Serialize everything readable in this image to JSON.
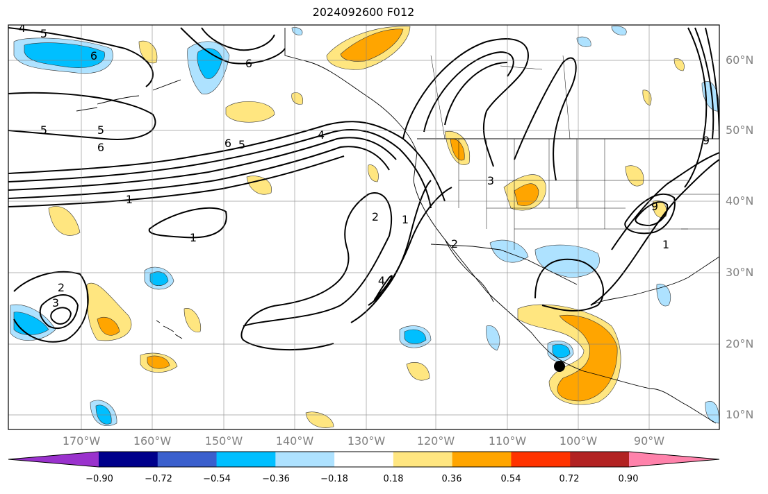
{
  "title": "2024092600 F012",
  "latitudes": [
    "60°N",
    "50°N",
    "40°N",
    "30°N",
    "20°N",
    "10°N"
  ],
  "longitudes": [
    "170°W",
    "160°W",
    "150°W",
    "140°W",
    "130°W",
    "120°W",
    "110°W",
    "100°W",
    "90°W"
  ],
  "colorbar": {
    "ticks": [
      "−0.90",
      "−0.72",
      "−0.54",
      "−0.36",
      "−0.18",
      "0.18",
      "0.36",
      "0.54",
      "0.72",
      "0.90"
    ],
    "colors": [
      "#9a32cd",
      "#00008b",
      "#3a5fcd",
      "#00bfff",
      "#aee2ff",
      "#ffffff",
      "#ffe680",
      "#ffa500",
      "#ff3300",
      "#b22222",
      "#ff82ab"
    ]
  },
  "contour_labels": [
    "4",
    "5",
    "6",
    "6",
    "5",
    "5",
    "6",
    "6",
    "5",
    "4",
    "1",
    "1",
    "2",
    "3",
    "4",
    "2",
    "3",
    "1",
    "2",
    "9",
    "1",
    "9"
  ],
  "colors": {
    "shade_pos1": "#ffe680",
    "shade_pos2": "#ffa500",
    "shade_neg1": "#aee2ff",
    "shade_neg2": "#00bfff"
  }
}
